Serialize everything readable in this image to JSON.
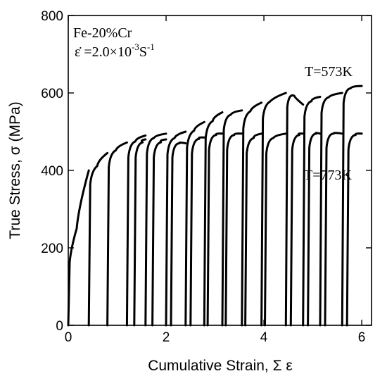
{
  "chart_data": {
    "type": "line",
    "xlabel": "Cumulative Strain, Σ ε",
    "ylabel": "True Stress, σ (MPa)",
    "xlim": [
      0,
      6.2
    ],
    "ylim": [
      0,
      800
    ],
    "xticks": [
      0,
      2,
      4,
      6
    ],
    "yticks": [
      0,
      200,
      400,
      600,
      800
    ],
    "grid": false,
    "legend": "none",
    "annotation_material": "Fe-20%Cr",
    "annotation_rate_prefix": "ε̇ =2.0×10",
    "annotation_rate_exp": "-3",
    "annotation_rate_unit": "S",
    "annotation_rate_unit_exp": "-1",
    "series": [
      {
        "name": "T=573K",
        "color": "#000000",
        "segments": [
          {
            "x0": 0.0,
            "x1": 0.42,
            "y_start": 200,
            "y_end": 400
          },
          {
            "x0": 0.42,
            "x1": 0.8,
            "y_start": 400,
            "y_end": 445
          },
          {
            "x0": 0.8,
            "x1": 1.2,
            "y_start": 445,
            "y_end": 472
          },
          {
            "x0": 1.2,
            "x1": 1.58,
            "y_start": 470,
            "y_end": 490
          },
          {
            "x0": 1.58,
            "x1": 2.0,
            "y_start": 480,
            "y_end": 495
          },
          {
            "x0": 2.0,
            "x1": 2.4,
            "y_start": 478,
            "y_end": 500
          },
          {
            "x0": 2.4,
            "x1": 2.78,
            "y_start": 495,
            "y_end": 525
          },
          {
            "x0": 2.78,
            "x1": 3.15,
            "y_start": 520,
            "y_end": 550
          },
          {
            "x0": 3.15,
            "x1": 3.55,
            "y_start": 540,
            "y_end": 555
          },
          {
            "x0": 3.55,
            "x1": 3.95,
            "y_start": 545,
            "y_end": 575
          },
          {
            "x0": 3.95,
            "x1": 4.45,
            "y_start": 570,
            "y_end": 600
          },
          {
            "x0": 4.45,
            "x1": 4.8,
            "y_start": 600,
            "y_end": 570
          },
          {
            "x0": 4.8,
            "x1": 5.15,
            "y_start": 575,
            "y_end": 590
          },
          {
            "x0": 5.15,
            "x1": 5.6,
            "y_start": 585,
            "y_end": 600
          },
          {
            "x0": 5.6,
            "x1": 6.0,
            "y_start": 610,
            "y_end": 618
          }
        ]
      },
      {
        "name": "T=773K",
        "color": "#000000",
        "segments": [
          {
            "x0": 1.35,
            "x1": 1.58,
            "y_start": 470,
            "y_end": 480
          },
          {
            "x0": 1.72,
            "x1": 2.0,
            "y_start": 470,
            "y_end": 480
          },
          {
            "x0": 2.1,
            "x1": 2.4,
            "y_start": 470,
            "y_end": 470
          },
          {
            "x0": 2.5,
            "x1": 2.78,
            "y_start": 480,
            "y_end": 485
          },
          {
            "x0": 2.85,
            "x1": 3.15,
            "y_start": 490,
            "y_end": 495
          },
          {
            "x0": 3.22,
            "x1": 3.55,
            "y_start": 490,
            "y_end": 495
          },
          {
            "x0": 3.62,
            "x1": 3.95,
            "y_start": 480,
            "y_end": 495
          },
          {
            "x0": 4.02,
            "x1": 4.45,
            "y_start": 480,
            "y_end": 495
          },
          {
            "x0": 4.55,
            "x1": 4.8,
            "y_start": 490,
            "y_end": 495
          },
          {
            "x0": 4.9,
            "x1": 5.15,
            "y_start": 495,
            "y_end": 495
          },
          {
            "x0": 5.25,
            "x1": 5.6,
            "y_start": 495,
            "y_end": 495
          },
          {
            "x0": 5.7,
            "x1": 6.0,
            "y_start": 490,
            "y_end": 495
          }
        ]
      }
    ]
  }
}
